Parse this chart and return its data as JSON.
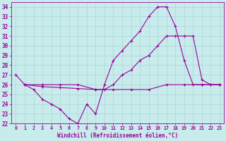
{
  "xlabel": "Windchill (Refroidissement éolien,°C)",
  "xlim": [
    -0.5,
    23.5
  ],
  "ylim": [
    22,
    34.5
  ],
  "yticks": [
    22,
    23,
    24,
    25,
    26,
    27,
    28,
    29,
    30,
    31,
    32,
    33,
    34
  ],
  "xticks": [
    0,
    1,
    2,
    3,
    4,
    5,
    6,
    7,
    8,
    9,
    10,
    11,
    12,
    13,
    14,
    15,
    16,
    17,
    18,
    19,
    20,
    21,
    22,
    23
  ],
  "bg_color": "#c8ecec",
  "line_color": "#9b009b",
  "grid_color": "#b0d8d8",
  "line1": {
    "x": [
      0,
      1,
      2,
      3,
      4,
      5,
      6,
      7,
      8,
      9,
      10,
      11,
      12,
      13,
      14,
      15,
      16,
      17,
      18,
      19,
      20,
      21,
      22,
      23
    ],
    "y": [
      27,
      26,
      25.5,
      24.5,
      24,
      23.5,
      22.5,
      22,
      24,
      23,
      26,
      28.5,
      29.5,
      30.5,
      31.5,
      33,
      34,
      34,
      32,
      28.5,
      26,
      26,
      26,
      26
    ],
    "marker": "+"
  },
  "line2": {
    "x": [
      1,
      3,
      5,
      7,
      9,
      10,
      11,
      12,
      13,
      14,
      15,
      16,
      17,
      18,
      19,
      20,
      21,
      22,
      23
    ],
    "y": [
      26,
      25.8,
      25.7,
      25.6,
      25.5,
      25.5,
      26,
      27,
      27.5,
      28.5,
      29,
      30,
      31,
      31,
      31,
      31,
      26.5,
      26,
      26
    ],
    "marker": "+"
  },
  "line3": {
    "x": [
      1,
      3,
      5,
      7,
      9,
      11,
      13,
      15,
      17,
      19,
      21,
      23
    ],
    "y": [
      26,
      26,
      26,
      26,
      25.5,
      25.5,
      25.5,
      25.5,
      26,
      26,
      26,
      26
    ],
    "marker": "D"
  }
}
